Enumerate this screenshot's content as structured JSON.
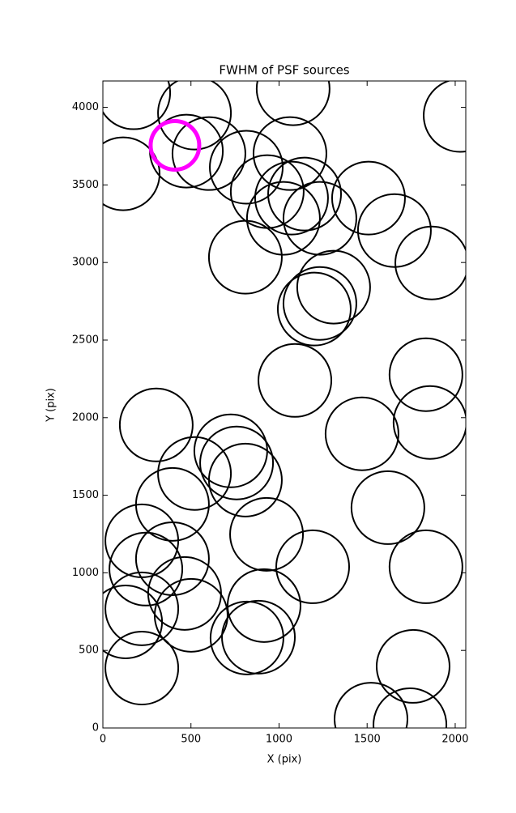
{
  "chart_data": {
    "type": "scatter",
    "title": "FWHM of PSF sources",
    "x_label": "X (pix)",
    "y_label": "Y (pix)",
    "xlim": [
      0,
      2060
    ],
    "ylim": [
      0,
      4170
    ],
    "xticks": [
      0,
      500,
      1000,
      1500,
      2000
    ],
    "yticks": [
      0,
      500,
      1000,
      1500,
      2000,
      2500,
      3000,
      3500,
      4000
    ],
    "series": [
      {
        "color": "#000000",
        "x": [
          175,
          520,
          1080,
          2028,
          115,
          474,
          602,
          814,
          933,
          1062,
          1071,
          1025,
          1145,
          1232,
          1508,
          1655,
          1867,
          809,
          1310,
          1232,
          1200,
          1090,
          1834,
          1857,
          1471,
          303,
          726,
          759,
          520,
          809,
          395,
          1618,
          221,
          395,
          244,
          929,
          1191,
          1834,
          464,
          501,
          221,
          129,
          915,
          818,
          883,
          221,
          1761,
          1522,
          1743
        ],
        "values": [
          4094,
          3963,
          4120,
          3948,
          3572,
          3718,
          3702,
          3614,
          3457,
          3702,
          3415,
          3285,
          3441,
          3285,
          3415,
          3206,
          2997,
          3034,
          2841,
          2736,
          2700,
          2240,
          2277,
          1969,
          1896,
          1953,
          1786,
          1708,
          1640,
          1598,
          1441,
          1420,
          1206,
          1091,
          1024,
          1248,
          1039,
          1039,
          867,
          726,
          768,
          684,
          789,
          580,
          585,
          386,
          397,
          57,
          21
        ]
      },
      {
        "color": "#ff00ff",
        "x": [
          409
        ],
        "values": [
          3755
        ]
      }
    ]
  }
}
